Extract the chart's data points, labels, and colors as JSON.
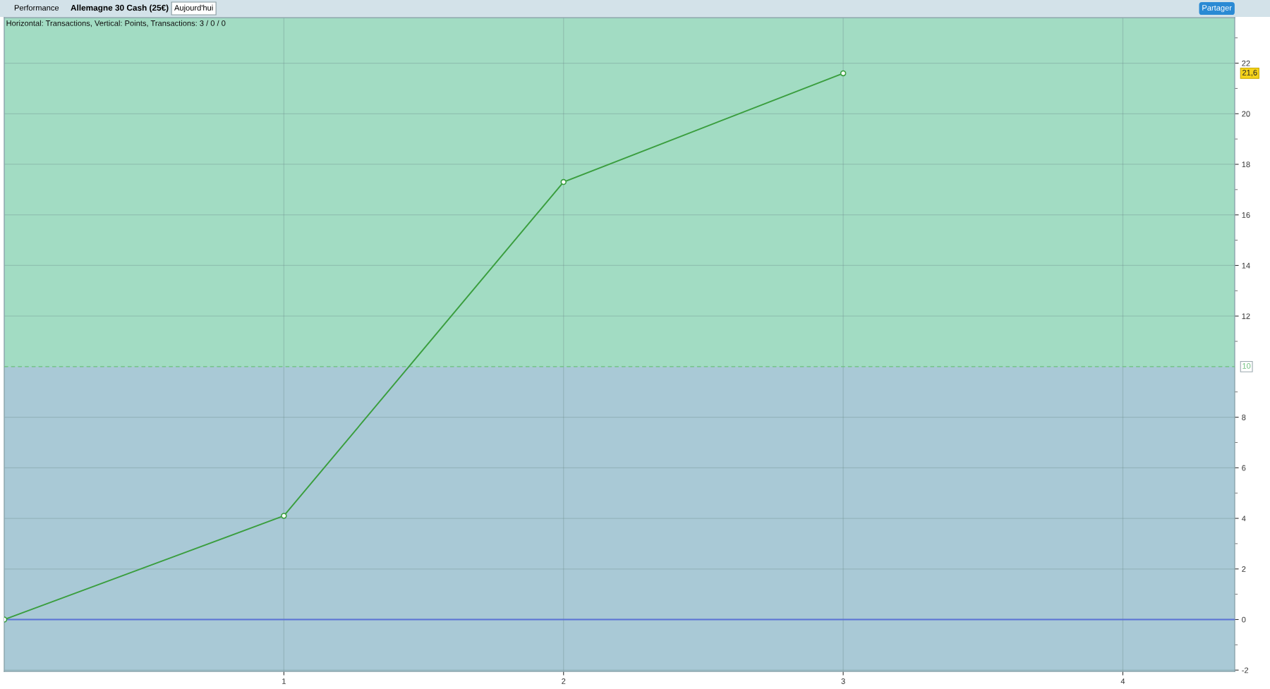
{
  "chart_data": {
    "type": "line",
    "title": "Allemagne 30 Cash (25€)",
    "subtitle": "Horizontal: Transactions, Vertical: Points, Transactions: 3 / 0 / 0",
    "annotations": [
      "Performance",
      "Aujourd'hui",
      "Partager",
      "21,6"
    ],
    "x": [
      0,
      1,
      2,
      3
    ],
    "series": [
      {
        "color": "#3a9e3e",
        "values": [
          0,
          4.1,
          17.3,
          21.6
        ]
      }
    ],
    "xlim": [
      0,
      4.4
    ],
    "xticks": [
      1,
      2,
      3,
      4
    ],
    "ylim": [
      -2.05,
      23.8
    ],
    "yticks": [
      -2,
      {
        "value": -1,
        "label": null
      },
      0,
      {
        "value": 1,
        "label": null
      },
      2,
      {
        "value": 3,
        "label": null
      },
      4,
      {
        "value": 5,
        "label": null
      },
      6,
      {
        "value": 7,
        "label": null
      },
      8,
      {
        "value": 9,
        "label": null
      },
      {
        "value": 11,
        "label": null
      },
      12,
      {
        "value": 13,
        "label": null
      },
      14,
      {
        "value": 15,
        "label": null
      },
      16,
      {
        "value": 17,
        "label": null
      },
      18,
      {
        "value": 19,
        "label": null
      },
      20,
      {
        "value": 21,
        "label": null
      },
      22,
      {
        "value": 23,
        "label": null
      }
    ],
    "ref_lines": [
      {
        "axis": "y",
        "value": 0,
        "color": "#5b73d6",
        "line_style": "solid"
      },
      {
        "axis": "y",
        "value": 10,
        "label": "10",
        "color": "#6cc07c",
        "line_style": "dashed"
      }
    ],
    "bands": [
      {
        "axis": "y",
        "from": 10,
        "to": 23.8,
        "color": "#a2dcc3"
      },
      {
        "axis": "y",
        "from": -2.05,
        "to": 10,
        "color": "#a9c9d6"
      }
    ],
    "grid": true,
    "marker": "circle",
    "line_style": "solid"
  }
}
